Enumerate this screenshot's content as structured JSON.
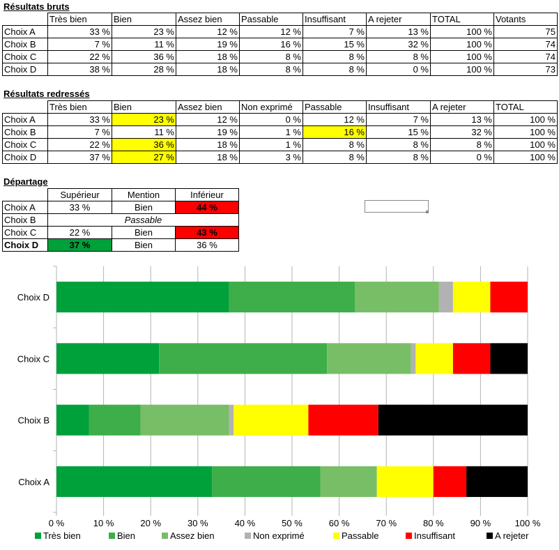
{
  "bruts": {
    "title": "Résultats bruts",
    "headers": [
      "Très bien",
      "Bien",
      "Assez bien",
      "Passable",
      "Insuffisant",
      "A rejeter",
      "TOTAL",
      "Votants"
    ],
    "rows": [
      {
        "label": "Choix A",
        "cells": [
          "33 %",
          "23 %",
          "12 %",
          "12 %",
          "7 %",
          "13 %",
          "100 %",
          "75"
        ]
      },
      {
        "label": "Choix B",
        "cells": [
          "7 %",
          "11 %",
          "19 %",
          "16 %",
          "15 %",
          "32 %",
          "100 %",
          "74"
        ]
      },
      {
        "label": "Choix C",
        "cells": [
          "22 %",
          "36 %",
          "18 %",
          "8 %",
          "8 %",
          "8 %",
          "100 %",
          "74"
        ]
      },
      {
        "label": "Choix D",
        "cells": [
          "38 %",
          "28 %",
          "18 %",
          "8 %",
          "8 %",
          "0 %",
          "100 %",
          "73"
        ]
      }
    ]
  },
  "redresses": {
    "title": "Résultats redressés",
    "headers": [
      "Très bien",
      "Bien",
      "Assez bien",
      "Non exprimé",
      "Passable",
      "Insuffisant",
      "A rejeter",
      "TOTAL"
    ],
    "rows": [
      {
        "label": "Choix A",
        "cells": [
          "33 %",
          "23 %",
          "12 %",
          "0 %",
          "12 %",
          "7 %",
          "13 %",
          "100 %"
        ]
      },
      {
        "label": "Choix B",
        "cells": [
          "7 %",
          "11 %",
          "19 %",
          "1 %",
          "16 %",
          "15 %",
          "32 %",
          "100 %"
        ]
      },
      {
        "label": "Choix C",
        "cells": [
          "22 %",
          "36 %",
          "18 %",
          "1 %",
          "8 %",
          "8 %",
          "8 %",
          "100 %"
        ]
      },
      {
        "label": "Choix D",
        "cells": [
          "37 %",
          "27 %",
          "18 %",
          "3 %",
          "8 %",
          "8 %",
          "0 %",
          "100 %"
        ]
      }
    ]
  },
  "departage": {
    "title": "Départage",
    "headers": [
      "Supérieur",
      "Mention",
      "Inférieur"
    ],
    "rows": [
      {
        "label": "Choix A",
        "sup": "33 %",
        "mention": "Bien",
        "inf": "44 %"
      },
      {
        "label": "Choix B",
        "sup": "",
        "mention": "Passable",
        "inf": ""
      },
      {
        "label": "Choix C",
        "sup": "22 %",
        "mention": "Bien",
        "inf": "43 %"
      },
      {
        "label": "Choix D",
        "sup": "37 %",
        "mention": "Bien",
        "inf": "36 %"
      }
    ]
  },
  "colors": {
    "highlight_yellow": "#ffff00",
    "highlight_red": "#ff0000",
    "highlight_green": "#00a03a"
  },
  "chart_data": {
    "type": "bar",
    "orientation": "horizontal",
    "stacked": "percent",
    "categories": [
      "Choix A",
      "Choix B",
      "Choix C",
      "Choix D"
    ],
    "series": [
      {
        "name": "Très bien",
        "color": "#00a03a",
        "values": [
          33,
          7,
          22,
          37
        ]
      },
      {
        "name": "Bien",
        "color": "#3dae49",
        "values": [
          23,
          11,
          36,
          27
        ]
      },
      {
        "name": "Assez bien",
        "color": "#78be66",
        "values": [
          12,
          19,
          18,
          18
        ]
      },
      {
        "name": "Non exprimé",
        "color": "#b2b2b2",
        "values": [
          0,
          1,
          1,
          3
        ]
      },
      {
        "name": "Passable",
        "color": "#ffff00",
        "values": [
          12,
          16,
          8,
          8
        ]
      },
      {
        "name": "Insuffisant",
        "color": "#ff0000",
        "values": [
          7,
          15,
          8,
          8
        ]
      },
      {
        "name": "A rejeter",
        "color": "#000000",
        "values": [
          13,
          32,
          8,
          0
        ]
      }
    ],
    "xticks": [
      "0 %",
      "10 %",
      "20 %",
      "30 %",
      "40 %",
      "50 %",
      "60 %",
      "70 %",
      "80 %",
      "90 %",
      "100 %"
    ],
    "xlim": [
      0,
      100
    ],
    "grid": true,
    "legend": "bottom"
  }
}
